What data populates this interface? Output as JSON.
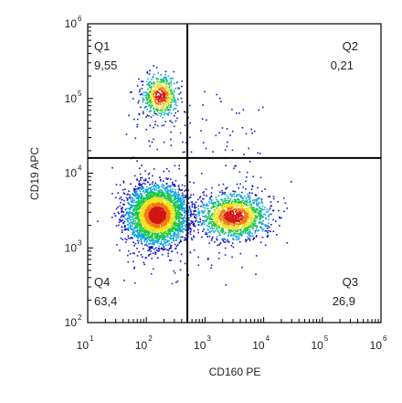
{
  "chart_data": {
    "type": "scatter",
    "subtype": "flow-cytometry-density-dot-plot",
    "xlabel": "CD160 PE",
    "ylabel": "CD19 APC",
    "x_scale": "log",
    "y_scale": "log",
    "xlim": [
      10,
      1000000
    ],
    "ylim": [
      100,
      1000000
    ],
    "x_ticks": [
      {
        "base": "10",
        "exp": "1",
        "value": 10
      },
      {
        "base": "10",
        "exp": "2",
        "value": 100
      },
      {
        "base": "10",
        "exp": "3",
        "value": 1000
      },
      {
        "base": "10",
        "exp": "4",
        "value": 10000
      },
      {
        "base": "10",
        "exp": "5",
        "value": 100000
      },
      {
        "base": "10",
        "exp": "6",
        "value": 1000000
      }
    ],
    "y_ticks": [
      {
        "base": "10",
        "exp": "2",
        "value": 100
      },
      {
        "base": "10",
        "exp": "3",
        "value": 1000
      },
      {
        "base": "10",
        "exp": "4",
        "value": 10000
      },
      {
        "base": "10",
        "exp": "5",
        "value": 100000
      },
      {
        "base": "10",
        "exp": "6",
        "value": 1000000
      }
    ],
    "gate": {
      "x": 500,
      "y": 16000
    },
    "quadrants": [
      {
        "name": "Q1",
        "value": "9,55",
        "position": "top-left"
      },
      {
        "name": "Q2",
        "value": "0,21",
        "position": "top-right"
      },
      {
        "name": "Q3",
        "value": "26,9",
        "position": "bottom-right"
      },
      {
        "name": "Q4",
        "value": "63,4",
        "position": "bottom-left"
      }
    ],
    "populations": [
      {
        "center_x": 150,
        "center_y": 2800,
        "spread_log_x": 0.26,
        "spread_log_y": 0.2,
        "share": 0.634
      },
      {
        "center_x": 3000,
        "center_y": 2700,
        "spread_log_x": 0.3,
        "spread_log_y": 0.15,
        "share": 0.269
      },
      {
        "center_x": 170,
        "center_y": 110000,
        "spread_log_x": 0.15,
        "spread_log_y": 0.15,
        "share": 0.0955
      }
    ],
    "density_colors": [
      "#1515c8",
      "#0ea5e0",
      "#19c94a",
      "#f2e21a",
      "#f07818",
      "#d21414"
    ],
    "grid": false,
    "legend": "none"
  }
}
